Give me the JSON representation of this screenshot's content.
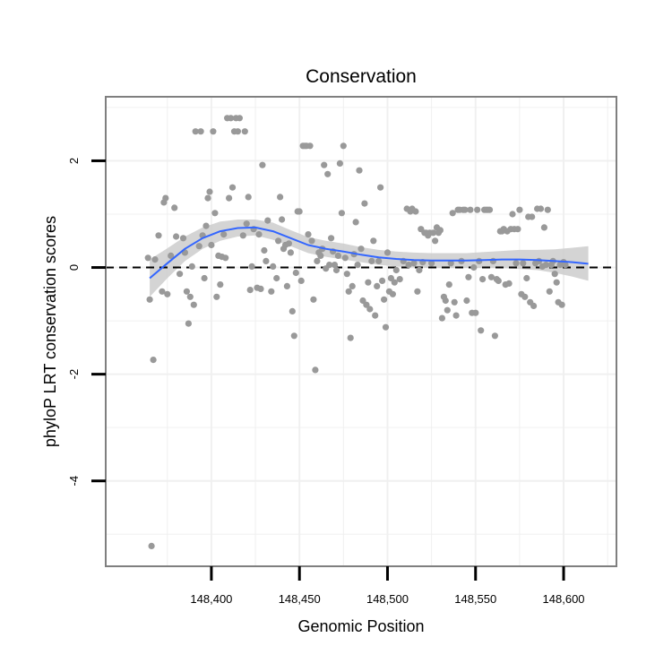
{
  "chart_data": {
    "type": "scatter",
    "title": "Conservation",
    "xlabel": "Genomic Position",
    "ylabel": "phyloP LRT conservation scores",
    "xlim": [
      148340,
      148630
    ],
    "ylim": [
      -5.6,
      3.2
    ],
    "x_ticks": [
      148400,
      148450,
      148500,
      148550,
      148600
    ],
    "x_tick_labels": [
      "148,400",
      "148,450",
      "148,500",
      "148,550",
      "148,600"
    ],
    "y_ticks": [
      -4,
      -2,
      0,
      2
    ],
    "y_tick_labels": [
      "-4",
      "-2",
      "0",
      "2"
    ],
    "reference_line": 0,
    "colors": {
      "points": "#999999",
      "smooth": "#3366ff",
      "ribbon": "#cccccc",
      "reference": "#000000",
      "grid": "#f0f0f0",
      "border": "#7f7f7f"
    },
    "points": [
      [
        148364,
        0.18
      ],
      [
        148365,
        -0.6
      ],
      [
        148366,
        -5.22
      ],
      [
        148367,
        -1.73
      ],
      [
        148368,
        0.15
      ],
      [
        148370,
        0.6
      ],
      [
        148372,
        -0.45
      ],
      [
        148373,
        1.22
      ],
      [
        148374,
        1.3
      ],
      [
        148375,
        -0.5
      ],
      [
        148377,
        0.22
      ],
      [
        148379,
        1.12
      ],
      [
        148380,
        0.58
      ],
      [
        148382,
        -0.12
      ],
      [
        148384,
        0.55
      ],
      [
        148385,
        0.28
      ],
      [
        148386,
        -0.45
      ],
      [
        148387,
        -1.05
      ],
      [
        148388,
        -0.55
      ],
      [
        148389,
        0.02
      ],
      [
        148390,
        -0.7
      ],
      [
        148391,
        2.55
      ],
      [
        148393,
        0.4
      ],
      [
        148394,
        2.55
      ],
      [
        148395,
        0.6
      ],
      [
        148396,
        -0.2
      ],
      [
        148397,
        0.78
      ],
      [
        148398,
        1.3
      ],
      [
        148399,
        1.42
      ],
      [
        148400,
        0.42
      ],
      [
        148401,
        2.55
      ],
      [
        148402,
        1.02
      ],
      [
        148403,
        -0.55
      ],
      [
        148404,
        0.22
      ],
      [
        148405,
        -0.32
      ],
      [
        148406,
        0.2
      ],
      [
        148407,
        0.62
      ],
      [
        148408,
        0.18
      ],
      [
        148409,
        2.8
      ],
      [
        148410,
        1.3
      ],
      [
        148411,
        2.8
      ],
      [
        148412,
        1.5
      ],
      [
        148413,
        2.55
      ],
      [
        148414,
        2.8
      ],
      [
        148415,
        2.55
      ],
      [
        148416,
        2.8
      ],
      [
        148418,
        0.6
      ],
      [
        148419,
        2.55
      ],
      [
        148420,
        0.82
      ],
      [
        148421,
        1.32
      ],
      [
        148422,
        -0.42
      ],
      [
        148423,
        0.02
      ],
      [
        148424,
        0.72
      ],
      [
        148426,
        -0.38
      ],
      [
        148427,
        0.62
      ],
      [
        148428,
        -0.4
      ],
      [
        148429,
        1.92
      ],
      [
        148430,
        0.32
      ],
      [
        148431,
        0.12
      ],
      [
        148432,
        0.88
      ],
      [
        148434,
        -0.45
      ],
      [
        148435,
        0.02
      ],
      [
        148437,
        -0.2
      ],
      [
        148438,
        0.5
      ],
      [
        148439,
        1.32
      ],
      [
        148440,
        0.9
      ],
      [
        148441,
        0.35
      ],
      [
        148442,
        0.42
      ],
      [
        148443,
        -0.35
      ],
      [
        148444,
        0.45
      ],
      [
        148445,
        0.28
      ],
      [
        148446,
        -0.82
      ],
      [
        148447,
        -1.28
      ],
      [
        148448,
        -0.1
      ],
      [
        148449,
        1.05
      ],
      [
        148450,
        1.05
      ],
      [
        148451,
        -0.25
      ],
      [
        148452,
        2.28
      ],
      [
        148453,
        2.28
      ],
      [
        148454,
        2.28
      ],
      [
        148455,
        0.62
      ],
      [
        148456,
        2.28
      ],
      [
        148457,
        0.5
      ],
      [
        148458,
        -0.6
      ],
      [
        148459,
        -1.92
      ],
      [
        148460,
        0.12
      ],
      [
        148461,
        0.28
      ],
      [
        148462,
        0.22
      ],
      [
        148463,
        0.35
      ],
      [
        148464,
        1.92
      ],
      [
        148465,
        -0.02
      ],
      [
        148466,
        1.75
      ],
      [
        148467,
        0.05
      ],
      [
        148468,
        0.55
      ],
      [
        148469,
        0.3
      ],
      [
        148470,
        0.05
      ],
      [
        148471,
        -0.05
      ],
      [
        148472,
        0.22
      ],
      [
        148473,
        1.95
      ],
      [
        148474,
        1.02
      ],
      [
        148475,
        2.28
      ],
      [
        148476,
        0.18
      ],
      [
        148477,
        -0.12
      ],
      [
        148478,
        -0.45
      ],
      [
        148479,
        -1.32
      ],
      [
        148480,
        -0.35
      ],
      [
        148481,
        0.25
      ],
      [
        148482,
        0.85
      ],
      [
        148483,
        0.05
      ],
      [
        148484,
        1.82
      ],
      [
        148485,
        0.35
      ],
      [
        148486,
        -0.62
      ],
      [
        148487,
        1.2
      ],
      [
        148488,
        -0.7
      ],
      [
        148489,
        -0.28
      ],
      [
        148490,
        -0.78
      ],
      [
        148491,
        0.12
      ],
      [
        148492,
        0.5
      ],
      [
        148493,
        -0.9
      ],
      [
        148494,
        -0.35
      ],
      [
        148495,
        0.12
      ],
      [
        148496,
        1.5
      ],
      [
        148497,
        -0.25
      ],
      [
        148498,
        -0.6
      ],
      [
        148499,
        -1.12
      ],
      [
        148500,
        0.28
      ],
      [
        148501,
        -0.45
      ],
      [
        148502,
        -0.2
      ],
      [
        148503,
        -0.5
      ],
      [
        148504,
        -0.28
      ],
      [
        148505,
        -0.05
      ],
      [
        148507,
        -0.22
      ],
      [
        148509,
        0.12
      ],
      [
        148511,
        1.1
      ],
      [
        148512,
        0.05
      ],
      [
        148513,
        1.05
      ],
      [
        148514,
        1.1
      ],
      [
        148515,
        0.08
      ],
      [
        148516,
        1.05
      ],
      [
        148517,
        -0.45
      ],
      [
        148518,
        -0.05
      ],
      [
        148519,
        0.72
      ],
      [
        148520,
        0.1
      ],
      [
        148521,
        0.65
      ],
      [
        148522,
        0.65
      ],
      [
        148523,
        0.6
      ],
      [
        148524,
        0.65
      ],
      [
        148525,
        0.08
      ],
      [
        148526,
        0.65
      ],
      [
        148527,
        0.5
      ],
      [
        148528,
        0.75
      ],
      [
        148529,
        0.65
      ],
      [
        148530,
        0.7
      ],
      [
        148531,
        -0.95
      ],
      [
        148532,
        -0.55
      ],
      [
        148533,
        -0.62
      ],
      [
        148534,
        -0.8
      ],
      [
        148535,
        -0.32
      ],
      [
        148536,
        0.08
      ],
      [
        148537,
        1.02
      ],
      [
        148538,
        -0.65
      ],
      [
        148539,
        -0.9
      ],
      [
        148540,
        1.08
      ],
      [
        148541,
        1.08
      ],
      [
        148542,
        0.12
      ],
      [
        148543,
        1.08
      ],
      [
        148544,
        1.08
      ],
      [
        148545,
        -0.62
      ],
      [
        148546,
        -0.18
      ],
      [
        148547,
        1.08
      ],
      [
        148548,
        -0.85
      ],
      [
        148549,
        0.0
      ],
      [
        148550,
        -0.85
      ],
      [
        148551,
        1.08
      ],
      [
        148552,
        0.12
      ],
      [
        148553,
        -1.18
      ],
      [
        148554,
        -0.22
      ],
      [
        148555,
        1.08
      ],
      [
        148556,
        1.08
      ],
      [
        148557,
        1.08
      ],
      [
        148558,
        1.08
      ],
      [
        148559,
        -0.18
      ],
      [
        148560,
        0.12
      ],
      [
        148561,
        -1.28
      ],
      [
        148562,
        -0.22
      ],
      [
        148563,
        -0.25
      ],
      [
        148564,
        0.68
      ],
      [
        148565,
        0.68
      ],
      [
        148566,
        0.72
      ],
      [
        148567,
        -0.32
      ],
      [
        148568,
        0.68
      ],
      [
        148569,
        -0.3
      ],
      [
        148570,
        0.72
      ],
      [
        148571,
        1.0
      ],
      [
        148572,
        0.72
      ],
      [
        148573,
        0.08
      ],
      [
        148574,
        0.72
      ],
      [
        148575,
        1.08
      ],
      [
        148576,
        -0.5
      ],
      [
        148577,
        0.08
      ],
      [
        148578,
        -0.55
      ],
      [
        148579,
        -0.2
      ],
      [
        148580,
        0.95
      ],
      [
        148581,
        -0.65
      ],
      [
        148582,
        0.95
      ],
      [
        148583,
        -0.72
      ],
      [
        148584,
        0.08
      ],
      [
        148585,
        1.1
      ],
      [
        148586,
        0.12
      ],
      [
        148587,
        1.1
      ],
      [
        148588,
        0.02
      ],
      [
        148589,
        0.75
      ],
      [
        148590,
        0.05
      ],
      [
        148591,
        1.08
      ],
      [
        148592,
        -0.45
      ],
      [
        148593,
        0.05
      ],
      [
        148594,
        0.12
      ],
      [
        148595,
        -0.12
      ],
      [
        148596,
        -0.28
      ],
      [
        148597,
        -0.65
      ],
      [
        148598,
        0.05
      ],
      [
        148599,
        -0.7
      ],
      [
        148600,
        0.1
      ],
      [
        148601,
        0.05
      ]
    ],
    "smooth": {
      "x": [
        148365,
        148375,
        148385,
        148395,
        148405,
        148415,
        148425,
        148435,
        148445,
        148455,
        148465,
        148475,
        148485,
        148495,
        148505,
        148515,
        148525,
        148535,
        148545,
        148555,
        148565,
        148575,
        148585,
        148595,
        148605,
        148614
      ],
      "y": [
        -0.2,
        0.08,
        0.35,
        0.55,
        0.68,
        0.74,
        0.75,
        0.68,
        0.55,
        0.42,
        0.35,
        0.3,
        0.24,
        0.19,
        0.16,
        0.14,
        0.13,
        0.13,
        0.13,
        0.14,
        0.15,
        0.15,
        0.14,
        0.12,
        0.1,
        0.07
      ],
      "lower": [
        -0.55,
        -0.2,
        0.12,
        0.35,
        0.5,
        0.58,
        0.6,
        0.52,
        0.4,
        0.27,
        0.2,
        0.15,
        0.1,
        0.05,
        0.02,
        0.0,
        -0.01,
        -0.01,
        -0.01,
        -0.01,
        -0.01,
        -0.03,
        -0.05,
        -0.1,
        -0.17,
        -0.25
      ],
      "upper": [
        0.15,
        0.36,
        0.58,
        0.75,
        0.86,
        0.9,
        0.9,
        0.84,
        0.7,
        0.57,
        0.5,
        0.45,
        0.38,
        0.33,
        0.3,
        0.28,
        0.27,
        0.27,
        0.27,
        0.29,
        0.31,
        0.33,
        0.33,
        0.34,
        0.37,
        0.4
      ]
    }
  }
}
